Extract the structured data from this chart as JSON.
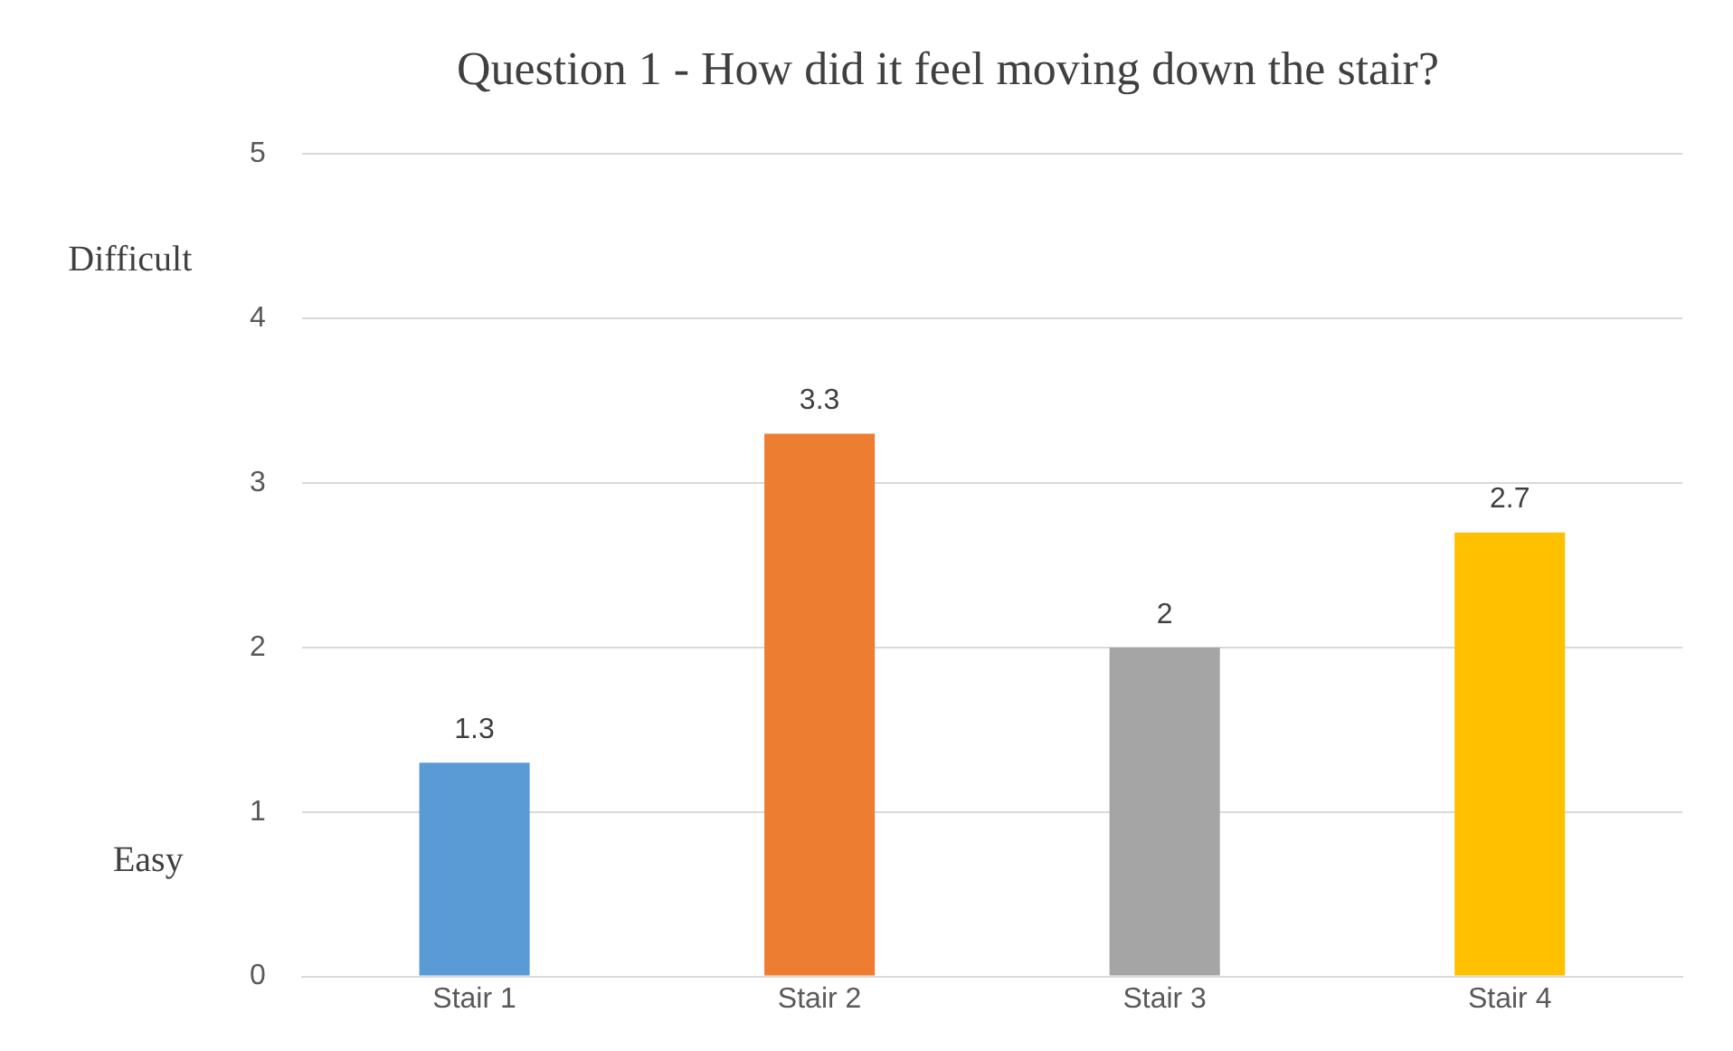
{
  "chart_data": {
    "type": "bar",
    "title": "Question 1 - How did it feel moving down the stair?",
    "categories": [
      "Stair 1",
      "Stair 2",
      "Stair 3",
      "Stair 4"
    ],
    "values": [
      1.3,
      3.3,
      2,
      2.7
    ],
    "colors": [
      "#5b9bd5",
      "#ed7d31",
      "#a5a5a5",
      "#ffc000"
    ],
    "ylim": [
      0,
      5
    ],
    "yticks": [
      0,
      1,
      2,
      3,
      4,
      5
    ],
    "grid": "y",
    "legend": false,
    "data_labels": true,
    "annotations": [
      "Difficult",
      "Easy"
    ]
  }
}
